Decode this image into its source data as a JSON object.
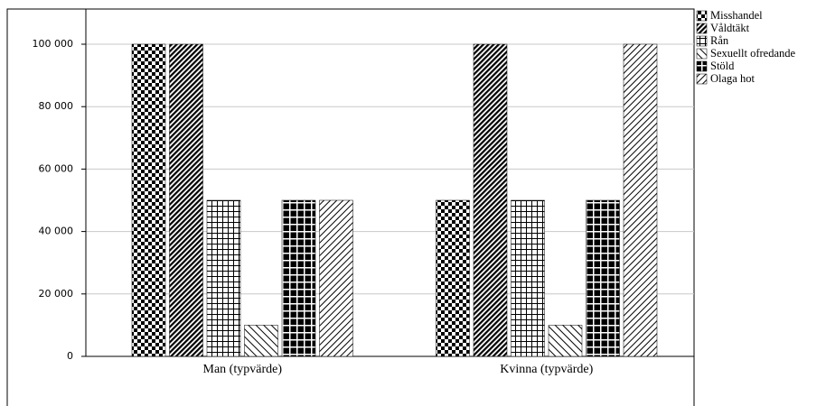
{
  "chart_data": {
    "type": "bar",
    "categories": [
      "Man (typvärde)",
      "Kvinna (typvärde)"
    ],
    "series": [
      {
        "name": "Misshandel",
        "color": "#000000",
        "values": [
          100000,
          50000
        ]
      },
      {
        "name": "Våldtäkt",
        "color": "#000000",
        "values": [
          100000,
          100000
        ]
      },
      {
        "name": "Rån",
        "color": "#000000",
        "values": [
          50000,
          50000
        ]
      },
      {
        "name": "Sexuellt ofredande",
        "color": "#000000",
        "values": [
          10000,
          10000
        ]
      },
      {
        "name": "Stöld",
        "color": "#000000",
        "values": [
          50000,
          50000
        ]
      },
      {
        "name": "Olaga hot",
        "color": "#000000",
        "values": [
          50000,
          100000
        ]
      }
    ],
    "ylim": [
      0,
      100000
    ],
    "yticks": [
      0,
      {
        "value": 20000,
        "label": "20 000"
      },
      {
        "value": 40000,
        "label": "40 000"
      },
      {
        "value": 60000,
        "label": "60 000"
      },
      {
        "value": 80000,
        "label": "80 000"
      },
      {
        "value": 100000,
        "label": "100 000"
      }
    ],
    "grid": true,
    "legend": "right"
  }
}
